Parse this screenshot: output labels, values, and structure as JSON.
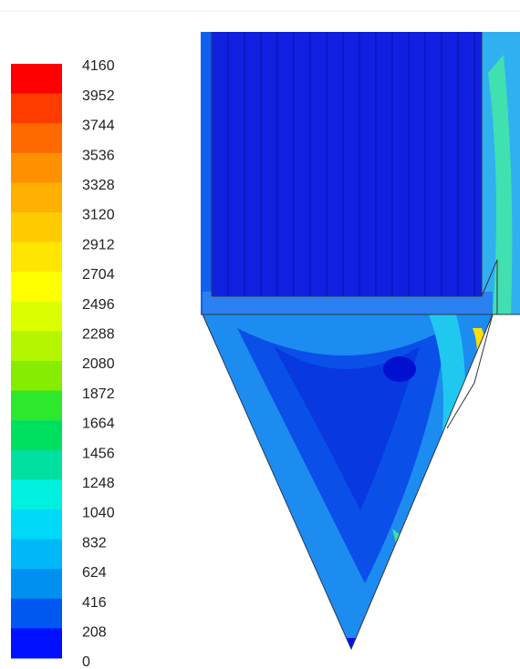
{
  "legend": {
    "labels": [
      4160,
      3952,
      3744,
      3536,
      3328,
      3120,
      2912,
      2704,
      2496,
      2288,
      2080,
      1872,
      1664,
      1456,
      1248,
      1040,
      832,
      624,
      416,
      208,
      0
    ],
    "colors": [
      "#ff0000",
      "#ff3c00",
      "#ff6a00",
      "#ff9000",
      "#ffb000",
      "#ffcc00",
      "#ffe600",
      "#ffff00",
      "#dcff00",
      "#b4f500",
      "#86ec00",
      "#2ee82e",
      "#00e060",
      "#00e0a0",
      "#00f0e0",
      "#00d8f8",
      "#00b8f8",
      "#0090f0",
      "#0058f0",
      "#0010ff"
    ]
  }
}
